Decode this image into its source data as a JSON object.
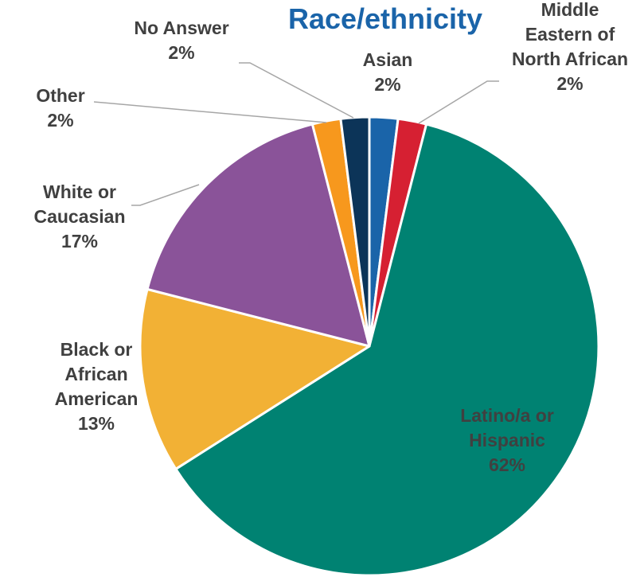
{
  "chart_data": {
    "type": "pie",
    "title": "Race/ethnicity",
    "series": [
      {
        "name": "",
        "slices": [
          {
            "label_lines": [
              "Asian",
              "2%"
            ],
            "value": 2,
            "color": "#1a64a9"
          },
          {
            "label_lines": [
              "Middle",
              "Eastern of",
              "North African",
              "2%"
            ],
            "value": 2,
            "color": "#d62032"
          },
          {
            "label_lines": [
              "Latino/a or",
              "Hispanic",
              "62%"
            ],
            "value": 62,
            "color": "#008272"
          },
          {
            "label_lines": [
              "Black or",
              "African",
              "American",
              "13%"
            ],
            "value": 13,
            "color": "#f2b135"
          },
          {
            "label_lines": [
              "White or",
              "Caucasian",
              "17%"
            ],
            "value": 17,
            "color": "#8a5399"
          },
          {
            "label_lines": [
              "Other",
              "2%"
            ],
            "value": 2,
            "color": "#f7981d"
          },
          {
            "label_lines": [
              "No Answer",
              "2%"
            ],
            "value": 2,
            "color": "#0c3458"
          }
        ]
      }
    ],
    "legend": "none",
    "data_labels": "category name and percent",
    "colors": {
      "title": "#1a64a9",
      "labels": "#404040",
      "leader_lines": "#a6a6a6",
      "slice_border": "#ffffff"
    }
  }
}
